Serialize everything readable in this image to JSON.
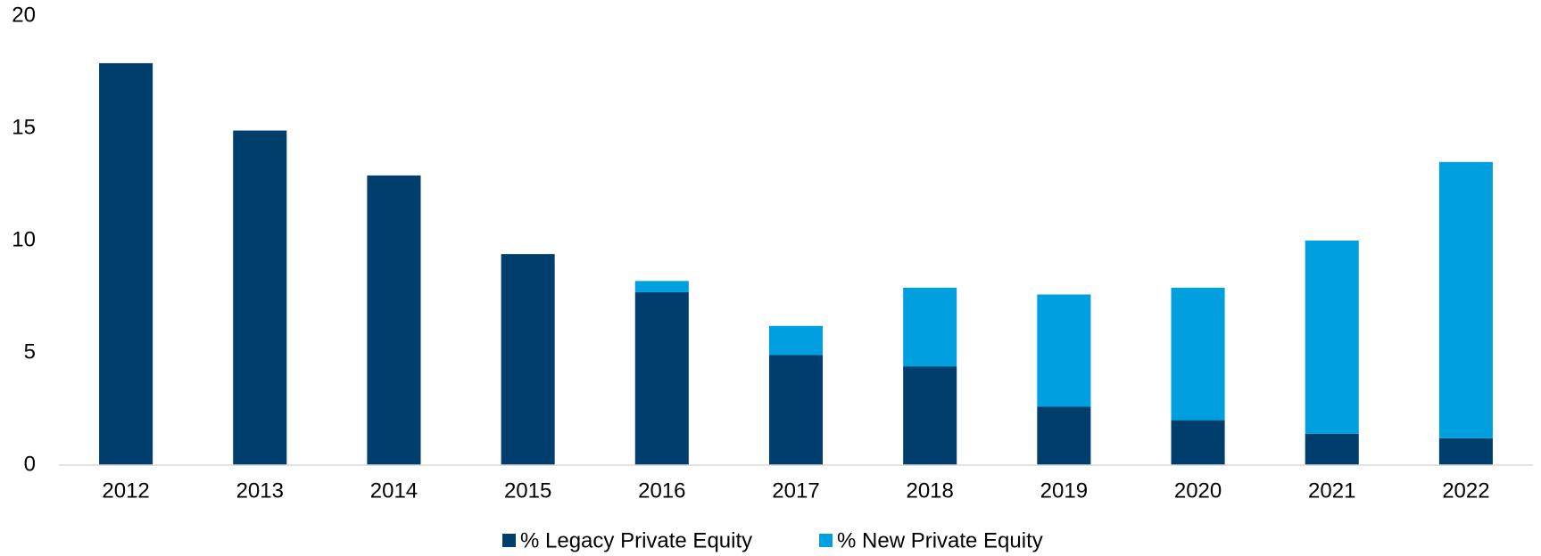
{
  "chart_data": {
    "type": "stacked_bar",
    "categories": [
      "2012",
      "2013",
      "2014",
      "2015",
      "2016",
      "2017",
      "2018",
      "2019",
      "2020",
      "2021",
      "2022"
    ],
    "series": [
      {
        "name": "% Legacy Private Equity",
        "color": "#003f6d",
        "values": [
          17.9,
          14.9,
          12.9,
          9.4,
          7.7,
          4.9,
          4.4,
          2.6,
          2.0,
          1.4,
          1.2
        ]
      },
      {
        "name": "% New Private Equity",
        "color": "#00a0e0",
        "values": [
          0,
          0,
          0,
          0,
          0.5,
          1.3,
          3.5,
          5.0,
          5.9,
          8.6,
          12.3
        ]
      }
    ],
    "ylim": [
      0,
      20
    ],
    "yticks": [
      0,
      5,
      10,
      15,
      20
    ],
    "grid": false,
    "legend": "bottom"
  }
}
